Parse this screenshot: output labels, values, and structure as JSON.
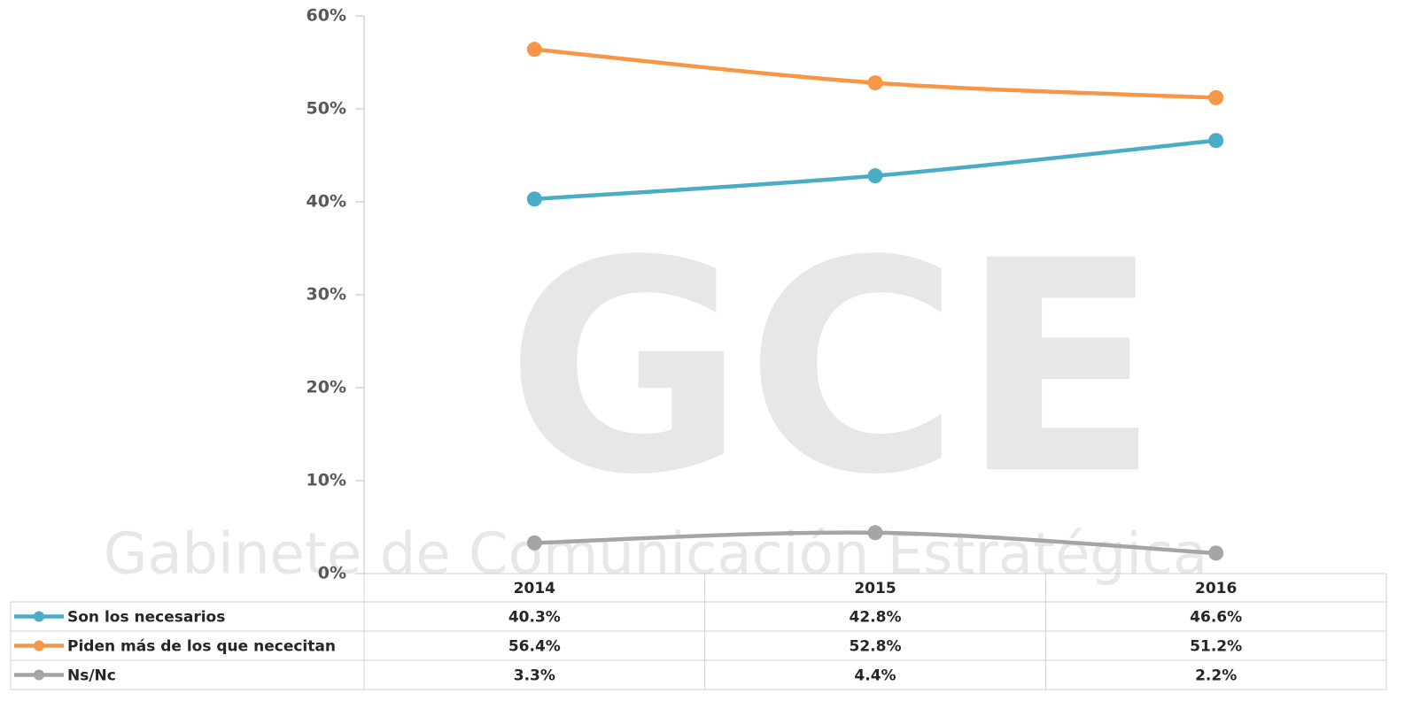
{
  "chart_data": {
    "type": "line",
    "categories": [
      "2014",
      "2015",
      "2016"
    ],
    "series": [
      {
        "name": "Son los necesarios",
        "color": "#4bacc6",
        "values": [
          40.3,
          42.8,
          46.6
        ],
        "value_labels": [
          "40.3%",
          "42.8%",
          "46.6%"
        ]
      },
      {
        "name": "Piden más de los que nececitan",
        "color": "#f79646",
        "values": [
          56.4,
          52.8,
          51.2
        ],
        "value_labels": [
          "56.4%",
          "52.8%",
          "51.2%"
        ]
      },
      {
        "name": "Ns/Nc",
        "color": "#a5a5a5",
        "values": [
          3.3,
          4.4,
          2.2
        ],
        "value_labels": [
          "3.3%",
          "4.4%",
          "2.2%"
        ]
      }
    ],
    "ylim": [
      0,
      60
    ],
    "yticks": [
      {
        "value": 0,
        "label": "0%"
      },
      {
        "value": 10,
        "label": "10%"
      },
      {
        "value": 20,
        "label": "20%"
      },
      {
        "value": 30,
        "label": "30%"
      },
      {
        "value": 40,
        "label": "40%"
      },
      {
        "value": 50,
        "label": "50%"
      },
      {
        "value": 60,
        "label": "60%"
      }
    ],
    "data_table": true,
    "watermark": {
      "logo": "GCE",
      "text": "Gabinete de Comunicación Estratégica"
    }
  }
}
